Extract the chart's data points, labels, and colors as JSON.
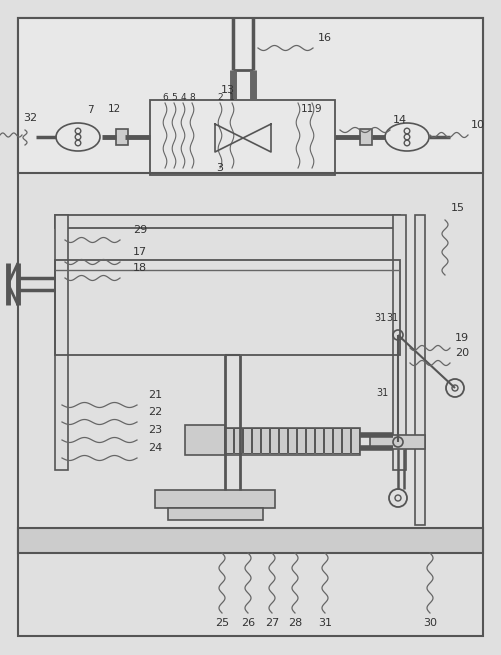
{
  "bg_color": "#e0e0e0",
  "line_color": "#666666",
  "text_color": "#333333",
  "fig_width": 5.01,
  "fig_height": 6.55,
  "dpi": 100
}
